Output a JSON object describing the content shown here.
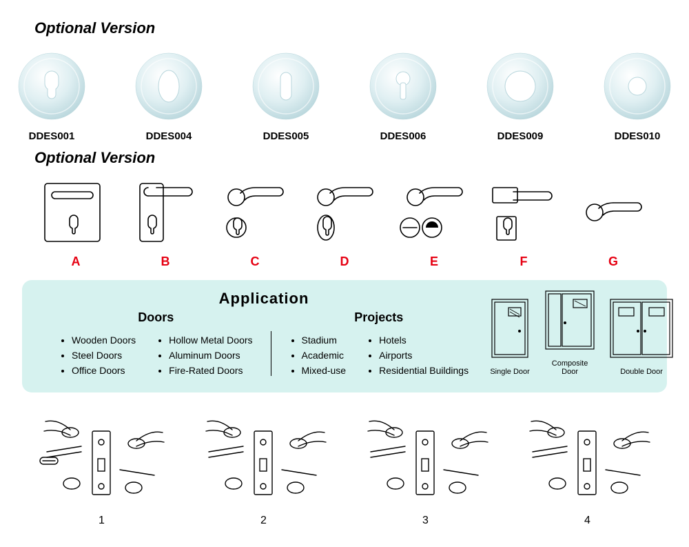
{
  "colors": {
    "escutcheon_fill": "#dfeff2",
    "escutcheon_shadow": "#b8d6dc",
    "escutcheon_highlight": "#ffffff",
    "text": "#000000",
    "handle_label": "#e60012",
    "app_panel_bg": "#d6f2ef",
    "line_stroke": "#000000"
  },
  "typography": {
    "title_fontsize": 22,
    "esc_label_fontsize": 15,
    "handle_label_fontsize": 18,
    "app_title_fontsize": 22,
    "app_colhead_fontsize": 18,
    "app_item_fontsize": 14,
    "door_label_fontsize": 11,
    "asm_label_fontsize": 16
  },
  "section1": {
    "title": "Optional Version",
    "items": [
      {
        "label": "DDES001",
        "shape": "euro"
      },
      {
        "label": "DDES004",
        "shape": "oval"
      },
      {
        "label": "DDES005",
        "shape": "slot"
      },
      {
        "label": "DDES006",
        "shape": "keyhole"
      },
      {
        "label": "DDES009",
        "shape": "ring"
      },
      {
        "label": "DDES010",
        "shape": "hole"
      }
    ]
  },
  "section2": {
    "title": "Optional Version",
    "items": [
      {
        "label": "A",
        "variant": "A"
      },
      {
        "label": "B",
        "variant": "B"
      },
      {
        "label": "C",
        "variant": "C"
      },
      {
        "label": "D",
        "variant": "D"
      },
      {
        "label": "E",
        "variant": "E"
      },
      {
        "label": "F",
        "variant": "F"
      },
      {
        "label": "G",
        "variant": "G"
      }
    ]
  },
  "application": {
    "title": "Application",
    "doors_head": "Doors",
    "projects_head": "Projects",
    "doors_col1": [
      "Wooden Doors",
      "Steel Doors",
      "Office Doors"
    ],
    "doors_col2": [
      "Hollow Metal Doors",
      "Aluminum Doors",
      "Fire-Rated Doors"
    ],
    "projects_col1": [
      "Stadium",
      "Academic",
      "Mixed-use"
    ],
    "projects_col2": [
      "Hotels",
      "Airports",
      "Residential Buildings"
    ],
    "door_types": [
      {
        "label": "Single Door",
        "type": "single"
      },
      {
        "label": "Composite Door",
        "type": "composite"
      },
      {
        "label": "Double Door",
        "type": "double"
      }
    ]
  },
  "assembly": {
    "items": [
      {
        "label": "1"
      },
      {
        "label": "2"
      },
      {
        "label": "3"
      },
      {
        "label": "4"
      }
    ]
  }
}
